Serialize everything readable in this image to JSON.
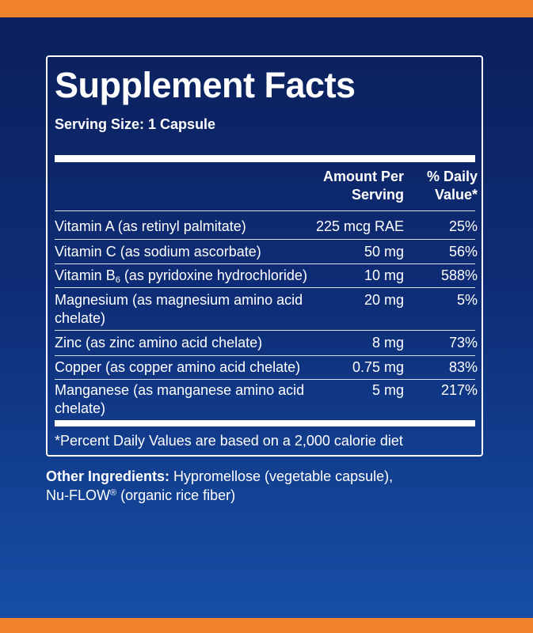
{
  "title": "Supplement Facts",
  "serving_size": "Serving Size: 1 Capsule",
  "headers": {
    "amount_line1": "Amount Per",
    "amount_line2": "Serving",
    "dv_line1": "% Daily",
    "dv_line2": "Value*"
  },
  "rows": [
    {
      "name": "Vitamin A (as retinyl palmitate)",
      "amount": "225 mcg RAE",
      "dv": "25%"
    },
    {
      "name": "Vitamin C (as sodium ascorbate)",
      "amount": "50 mg",
      "dv": "56%"
    },
    {
      "name_prefix": "Vitamin B",
      "name_sub": "6",
      "name_suffix": " (as pyridoxine hydrochloride)",
      "amount": "10 mg",
      "dv": "588%"
    },
    {
      "name_line1": "Magnesium (as magnesium amino acid",
      "name_line2": "chelate)",
      "amount": "20 mg",
      "dv": "5%"
    },
    {
      "name": "Zinc (as zinc amino acid chelate)",
      "amount": "8 mg",
      "dv": "73%"
    },
    {
      "name": "Copper (as copper amino acid chelate)",
      "amount": "0.75 mg",
      "dv": "83%"
    },
    {
      "name_line1": "Manganese (as manganese amino acid",
      "name_line2": "chelate)",
      "amount": "5 mg",
      "dv": "217%"
    }
  ],
  "footnote": "*Percent Daily Values are based on a 2,000 calorie diet",
  "other_ingredients": {
    "label": "Other Ingredients:",
    "text1": " Hypromellose (vegetable capsule),",
    "text2_prefix": "Nu-FLOW",
    "text2_sup": "®",
    "text2_suffix": " (organic rice fiber)"
  },
  "colors": {
    "accent_orange": "#f0832c",
    "background_navy": "#0b1f5a",
    "text": "#ffffff"
  }
}
